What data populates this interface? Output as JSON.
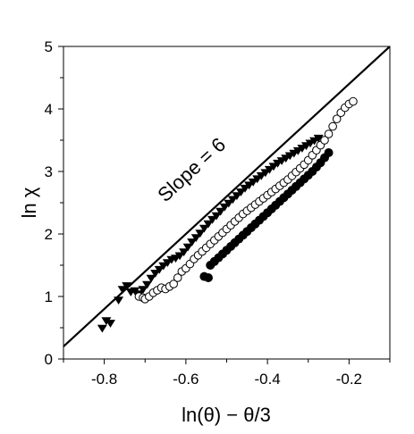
{
  "chart_data": {
    "type": "scatter",
    "title": "",
    "xlabel": "ln(θ) − θ/3",
    "ylabel": "ln χ",
    "xlim": [
      -0.9,
      -0.1
    ],
    "ylim": [
      0,
      5
    ],
    "xticks": [
      -0.8,
      -0.6,
      -0.4,
      -0.2
    ],
    "xtick_labels": [
      "-0.8",
      "-0.6",
      "-0.4",
      "-0.2"
    ],
    "yticks": [
      0,
      1,
      2,
      3,
      4,
      5
    ],
    "ytick_labels": [
      "0",
      "1",
      "2",
      "3",
      "4",
      "5"
    ],
    "grid": false,
    "legend": "none",
    "annotation": "Slope = 6",
    "reference_line": {
      "x": [
        -0.9,
        -0.1
      ],
      "y": [
        0.2,
        5.0
      ],
      "color": "#000000"
    },
    "series": [
      {
        "marker": "triangle-down",
        "color": "#000000",
        "x": [
          -0.805,
          -0.795,
          -0.785,
          -0.765,
          -0.755,
          -0.745,
          -0.735,
          -0.725,
          -0.715,
          -0.705,
          -0.695,
          -0.685,
          -0.675,
          -0.665,
          -0.655,
          -0.645,
          -0.635,
          -0.625,
          -0.615,
          -0.605,
          -0.595,
          -0.585,
          -0.575,
          -0.565,
          -0.555,
          -0.545,
          -0.535,
          -0.525,
          -0.515,
          -0.505,
          -0.495,
          -0.485,
          -0.475,
          -0.465,
          -0.455,
          -0.445,
          -0.435,
          -0.425,
          -0.415,
          -0.405,
          -0.395,
          -0.385,
          -0.375,
          -0.365,
          -0.355,
          -0.345,
          -0.335,
          -0.325,
          -0.315,
          -0.305,
          -0.295,
          -0.285,
          -0.275
        ],
        "y": [
          0.5,
          0.62,
          0.58,
          0.95,
          1.12,
          1.18,
          1.08,
          1.1,
          1.05,
          1.12,
          1.2,
          1.3,
          1.38,
          1.44,
          1.5,
          1.55,
          1.6,
          1.62,
          1.66,
          1.72,
          1.8,
          1.88,
          1.95,
          2.02,
          2.1,
          2.17,
          2.24,
          2.3,
          2.37,
          2.44,
          2.5,
          2.56,
          2.62,
          2.68,
          2.74,
          2.79,
          2.84,
          2.89,
          2.94,
          2.99,
          3.04,
          3.09,
          3.14,
          3.18,
          3.22,
          3.26,
          3.3,
          3.34,
          3.38,
          3.42,
          3.46,
          3.5,
          3.54
        ]
      },
      {
        "marker": "circle-open",
        "color": "#000000",
        "x": [
          -0.715,
          -0.705,
          -0.7,
          -0.69,
          -0.68,
          -0.67,
          -0.66,
          -0.65,
          -0.64,
          -0.63,
          -0.62,
          -0.61,
          -0.6,
          -0.59,
          -0.58,
          -0.57,
          -0.56,
          -0.55,
          -0.54,
          -0.53,
          -0.52,
          -0.51,
          -0.5,
          -0.49,
          -0.48,
          -0.47,
          -0.46,
          -0.45,
          -0.44,
          -0.43,
          -0.42,
          -0.41,
          -0.4,
          -0.39,
          -0.38,
          -0.37,
          -0.36,
          -0.35,
          -0.34,
          -0.33,
          -0.32,
          -0.31,
          -0.3,
          -0.29,
          -0.28,
          -0.27,
          -0.26,
          -0.25,
          -0.24,
          -0.23,
          -0.22,
          -0.21,
          -0.2,
          -0.19
        ],
        "y": [
          1.0,
          0.98,
          0.96,
          1.0,
          1.06,
          1.1,
          1.14,
          1.12,
          1.16,
          1.2,
          1.3,
          1.4,
          1.45,
          1.52,
          1.6,
          1.66,
          1.72,
          1.78,
          1.84,
          1.9,
          1.96,
          2.02,
          2.08,
          2.14,
          2.2,
          2.26,
          2.32,
          2.37,
          2.42,
          2.47,
          2.52,
          2.57,
          2.62,
          2.67,
          2.72,
          2.77,
          2.82,
          2.87,
          2.93,
          2.99,
          3.05,
          3.11,
          3.18,
          3.26,
          3.34,
          3.42,
          3.5,
          3.6,
          3.72,
          3.84,
          3.94,
          4.02,
          4.08,
          4.12
        ]
      },
      {
        "marker": "circle-filled",
        "color": "#000000",
        "x": [
          -0.555,
          -0.545,
          -0.54,
          -0.53,
          -0.52,
          -0.51,
          -0.5,
          -0.49,
          -0.48,
          -0.47,
          -0.46,
          -0.45,
          -0.44,
          -0.43,
          -0.42,
          -0.41,
          -0.4,
          -0.39,
          -0.38,
          -0.37,
          -0.36,
          -0.35,
          -0.34,
          -0.33,
          -0.32,
          -0.31,
          -0.3,
          -0.29,
          -0.28,
          -0.27,
          -0.26,
          -0.25
        ],
        "y": [
          1.32,
          1.3,
          1.5,
          1.56,
          1.62,
          1.68,
          1.74,
          1.8,
          1.86,
          1.92,
          1.98,
          2.04,
          2.1,
          2.16,
          2.22,
          2.28,
          2.34,
          2.4,
          2.46,
          2.52,
          2.58,
          2.64,
          2.7,
          2.76,
          2.82,
          2.88,
          2.94,
          3.0,
          3.07,
          3.14,
          3.22,
          3.3
        ]
      }
    ]
  }
}
